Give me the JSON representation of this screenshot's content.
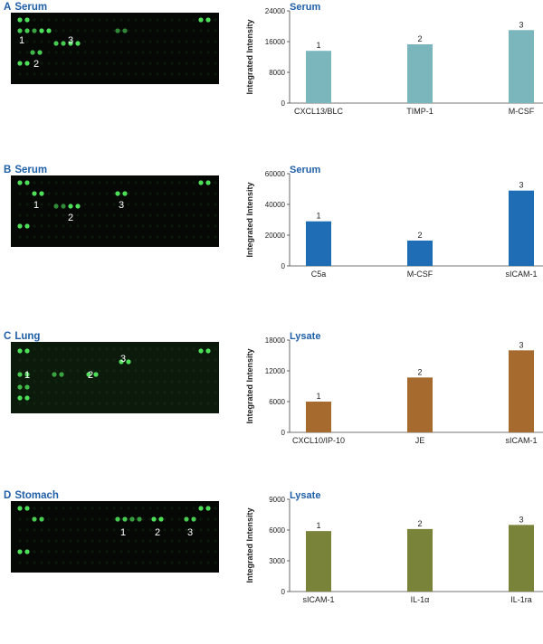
{
  "panels": [
    {
      "letter": "A",
      "tissue": "Serum",
      "sample": "Serum",
      "color": "#7bb6bd",
      "spot_labels": [
        "1",
        "2",
        "3"
      ],
      "chart_data": {
        "type": "bar",
        "categories": [
          "CXCL13/BLC",
          "TIMP-1",
          "M-CSF"
        ],
        "values": [
          13600,
          15300,
          19000
        ],
        "bar_labels": [
          "1",
          "2",
          "3"
        ],
        "ylabel": "Integrated Intensity",
        "ylim": [
          0,
          24000
        ],
        "yticks": [
          0,
          8000,
          16000,
          24000
        ]
      }
    },
    {
      "letter": "B",
      "tissue": "Serum",
      "sample": "Serum",
      "color": "#1f6db5",
      "spot_labels": [
        "1",
        "2",
        "3"
      ],
      "chart_data": {
        "type": "bar",
        "categories": [
          "C5a",
          "M-CSF",
          "sICAM-1"
        ],
        "values": [
          29000,
          16500,
          49000
        ],
        "bar_labels": [
          "1",
          "2",
          "3"
        ],
        "ylabel": "Integrated Intensity",
        "ylim": [
          0,
          60000
        ],
        "yticks": [
          0,
          20000,
          40000,
          60000
        ]
      }
    },
    {
      "letter": "C",
      "tissue": "Lung",
      "sample": "Lysate",
      "color": "#a66a2e",
      "spot_labels": [
        "1",
        "2",
        "3"
      ],
      "chart_data": {
        "type": "bar",
        "categories": [
          "CXCL10/IP-10",
          "JE",
          "sICAM-1"
        ],
        "values": [
          6000,
          10700,
          16000
        ],
        "bar_labels": [
          "1",
          "2",
          "3"
        ],
        "ylabel": "Integrated Intensity",
        "ylim": [
          0,
          18000
        ],
        "yticks": [
          0,
          6000,
          12000,
          18000
        ]
      }
    },
    {
      "letter": "D",
      "tissue": "Stomach",
      "sample": "Lysate",
      "color": "#7a833a",
      "spot_labels": [
        "1",
        "2",
        "3"
      ],
      "chart_data": {
        "type": "bar",
        "categories": [
          "sICAM-1",
          "IL-1α",
          "IL-1ra"
        ],
        "values": [
          5900,
          6100,
          6500
        ],
        "bar_labels": [
          "1",
          "2",
          "3"
        ],
        "ylabel": "Integrated Intensity",
        "ylim": [
          0,
          9000
        ],
        "yticks": [
          0,
          3000,
          6000,
          9000
        ]
      }
    }
  ]
}
